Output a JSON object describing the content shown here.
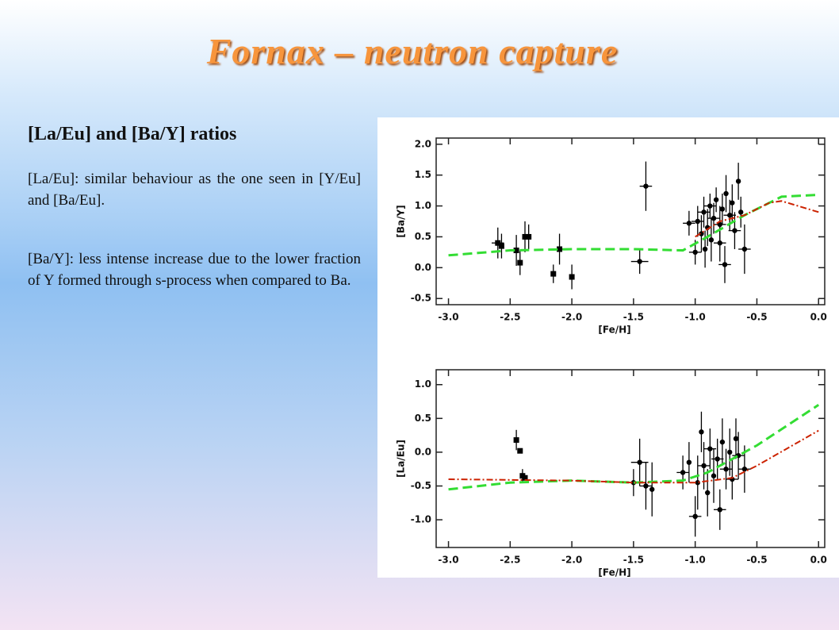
{
  "title": "Fornax – neutron capture",
  "heading": "[La/Eu] and [Ba/Y] ratios",
  "paragraphs": [
    "[La/Eu]: similar behaviour as the one seen in [Y/Eu] and [Ba/Eu].",
    "[Ba/Y]: less intense increase due to the lower fraction of Y formed through s-process when compared to Ba."
  ],
  "chart_data": [
    {
      "type": "scatter",
      "x_label": "[Fe/H]",
      "y_label": "[Ba/Y]",
      "xlim": [
        -3.1,
        0.05
      ],
      "ylim": [
        -0.6,
        2.1
      ],
      "xticks": [
        {
          "value": -3,
          "label": "-3.0"
        },
        -2.5,
        {
          "value": -2,
          "label": "-2.0"
        },
        -1.5,
        {
          "value": -1,
          "label": "-1.0"
        },
        -0.5,
        {
          "value": 0,
          "label": "0.0"
        }
      ],
      "yticks": [
        -0.5,
        {
          "value": 0,
          "label": "0.0"
        },
        0.5,
        {
          "value": 1,
          "label": "1.0"
        },
        1.5,
        {
          "value": 2,
          "label": "2.0"
        }
      ],
      "series": [
        {
          "type": "scatter",
          "marker": "square",
          "color": "#000000",
          "x": [
            -2.6,
            -2.57,
            -2.45,
            -2.42,
            -2.38,
            -2.35,
            -2.15,
            -2.1,
            -2.0
          ],
          "values": [
            0.4,
            0.35,
            0.28,
            0.08,
            0.5,
            0.5,
            -0.1,
            0.3,
            -0.15
          ],
          "errors": [
            0.25,
            0.2,
            0.25,
            0.2,
            0.25,
            0.2,
            0.15,
            0.25,
            0.2
          ],
          "xerrors": [
            0.05,
            null,
            null,
            null,
            null,
            null,
            null,
            0.05,
            null
          ]
        },
        {
          "type": "scatter",
          "marker": "circle",
          "color": "#000000",
          "x": [
            -1.4,
            -1.45,
            -1.05,
            -1.0,
            -0.98,
            -0.95,
            -0.93,
            -0.9,
            -0.88,
            -0.87,
            -0.85,
            -0.83,
            -0.8,
            -0.78,
            -0.76,
            -0.75,
            -0.72,
            -0.7,
            -0.68,
            -0.65,
            -0.63,
            -0.6,
            -0.92,
            -0.8
          ],
          "values": [
            1.32,
            0.1,
            0.72,
            0.25,
            0.75,
            0.55,
            0.9,
            0.65,
            1.0,
            0.45,
            0.8,
            1.1,
            0.7,
            0.95,
            0.05,
            1.2,
            0.85,
            1.05,
            0.6,
            1.4,
            0.9,
            0.3,
            0.3,
            0.4
          ],
          "errors": [
            0.4,
            0.2,
            0.2,
            0.2,
            0.25,
            0.3,
            0.25,
            0.3,
            0.2,
            0.35,
            0.25,
            0.2,
            0.3,
            0.25,
            0.3,
            0.3,
            0.25,
            0.3,
            0.3,
            0.3,
            0.25,
            0.4,
            0.3,
            0.3
          ],
          "xerrors": [
            0.05,
            0.07,
            0.05,
            0.05,
            0.05,
            null,
            0.05,
            null,
            0.05,
            null,
            0.05,
            null,
            0.05,
            null,
            0.05,
            null,
            0.05,
            null,
            0.05,
            null,
            null,
            0.05,
            null,
            0.05
          ]
        },
        {
          "type": "line",
          "style": "dashed",
          "color": "#33dd33",
          "x": [
            -3,
            -2.5,
            -2,
            -1.5,
            -1.1,
            -0.9,
            -0.6,
            -0.4,
            -0.3,
            0
          ],
          "values": [
            0.2,
            0.28,
            0.3,
            0.3,
            0.28,
            0.5,
            0.85,
            1.05,
            1.15,
            1.18
          ]
        },
        {
          "type": "line",
          "style": "dashdot",
          "color": "#cc2200",
          "x": [
            -1.0,
            -0.8,
            -0.6,
            -0.4,
            -0.3,
            -0.2,
            0
          ],
          "values": [
            0.5,
            0.75,
            0.85,
            1.05,
            1.08,
            1.02,
            0.9
          ]
        }
      ]
    },
    {
      "type": "scatter",
      "x_label": "[Fe/H]",
      "y_label": "[La/Eu]",
      "xlim": [
        -3.1,
        0.05
      ],
      "ylim": [
        -1.41,
        1.22
      ],
      "xticks": [
        {
          "value": -3,
          "label": "-3.0"
        },
        -2.5,
        {
          "value": -2,
          "label": "-2.0"
        },
        -1.5,
        {
          "value": -1,
          "label": "-1.0"
        },
        -0.5,
        {
          "value": 0,
          "label": "0.0"
        }
      ],
      "yticks": [
        {
          "value": -1,
          "label": "-1.0"
        },
        -0.5,
        {
          "value": 0,
          "label": "0.0"
        },
        0.5,
        {
          "value": 1,
          "label": "1.0"
        }
      ],
      "series": [
        {
          "type": "scatter",
          "marker": "square",
          "color": "#000000",
          "x": [
            -2.45,
            -2.42,
            -2.4,
            -2.38
          ],
          "values": [
            0.18,
            0.02,
            -0.35,
            -0.38
          ],
          "errors": [
            0.15,
            null,
            0.1,
            null
          ],
          "xerrors": [
            null,
            null,
            null,
            null
          ]
        },
        {
          "type": "scatter",
          "marker": "circle",
          "color": "#000000",
          "x": [
            -1.5,
            -1.45,
            -1.4,
            -1.35,
            -1.1,
            -1.05,
            -1.0,
            -0.98,
            -0.95,
            -0.93,
            -0.9,
            -0.88,
            -0.85,
            -0.82,
            -0.8,
            -0.78,
            -0.75,
            -0.72,
            -0.7,
            -0.67,
            -0.65,
            -0.6
          ],
          "values": [
            -0.45,
            -0.15,
            -0.5,
            -0.55,
            -0.3,
            -0.15,
            -0.95,
            -0.45,
            0.3,
            -0.2,
            -0.6,
            0.05,
            -0.35,
            -0.1,
            -0.85,
            0.15,
            -0.25,
            0.0,
            -0.4,
            0.2,
            -0.05,
            -0.25
          ],
          "errors": [
            0.2,
            0.35,
            0.35,
            0.4,
            0.25,
            0.3,
            0.3,
            0.4,
            0.3,
            0.35,
            0.35,
            0.3,
            0.4,
            0.3,
            0.3,
            0.35,
            0.3,
            0.35,
            0.3,
            0.3,
            0.35,
            0.35
          ],
          "xerrors": [
            0.1,
            0.07,
            0.05,
            null,
            0.05,
            null,
            0.05,
            null,
            null,
            0.05,
            null,
            0.05,
            null,
            0.05,
            0.05,
            null,
            0.05,
            null,
            0.05,
            null,
            0.05,
            0.05
          ]
        },
        {
          "type": "line",
          "style": "dashed",
          "color": "#33dd33",
          "x": [
            -3,
            -2.5,
            -2,
            -1.5,
            -1.1,
            -0.9,
            -0.5,
            0
          ],
          "values": [
            -0.55,
            -0.45,
            -0.42,
            -0.45,
            -0.42,
            -0.3,
            0.1,
            0.7
          ]
        },
        {
          "type": "line",
          "style": "dashdot",
          "color": "#cc2200",
          "x": [
            -3,
            -2,
            -1.5,
            -1.0,
            -0.7,
            -0.5,
            0
          ],
          "values": [
            -0.4,
            -0.42,
            -0.45,
            -0.45,
            -0.38,
            -0.2,
            0.32
          ]
        }
      ]
    }
  ]
}
